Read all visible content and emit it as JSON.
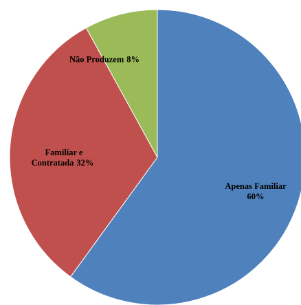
{
  "chart_data": {
    "type": "pie",
    "categories": [
      "Apenas Familiar",
      "Familiar e Contratada",
      "Não Produzem"
    ],
    "values": [
      60,
      32,
      8
    ],
    "value_labels": [
      "60%",
      "32%",
      "8%"
    ],
    "colors": [
      "#4f81bd",
      "#c0504d",
      "#9bbb59"
    ]
  }
}
